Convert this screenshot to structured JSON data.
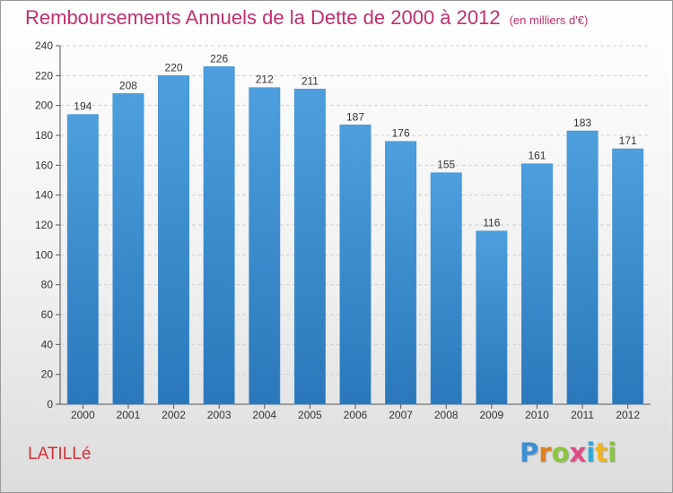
{
  "chart_data": {
    "type": "bar",
    "title": "Remboursements Annuels de la Dette de 2000 à 2012",
    "unit": "(en milliers d'€)",
    "categories": [
      "2000",
      "2001",
      "2002",
      "2003",
      "2004",
      "2005",
      "2006",
      "2007",
      "2008",
      "2009",
      "2010",
      "2011",
      "2012"
    ],
    "values": [
      194,
      208,
      220,
      226,
      212,
      211,
      187,
      176,
      155,
      116,
      161,
      183,
      171
    ],
    "ylim": [
      0,
      240
    ],
    "yticks": [
      0,
      20,
      40,
      60,
      80,
      100,
      120,
      140,
      160,
      180,
      200,
      220,
      240
    ],
    "grid": true,
    "bar_color": "#4d9fdd",
    "bar_color_dark": "#2a78bb",
    "title_color": "#c0306e"
  },
  "location": {
    "name": "LATILLé",
    "color": "#d4303a"
  },
  "brand": {
    "letters": [
      "P",
      "r",
      "o",
      "x",
      "i",
      "t",
      "i"
    ],
    "colors": [
      "#3d8fd4",
      "#e0801f",
      "#8cc63f",
      "#e04a86",
      "#2eaadc",
      "#f0b41c",
      "#88c440"
    ]
  }
}
